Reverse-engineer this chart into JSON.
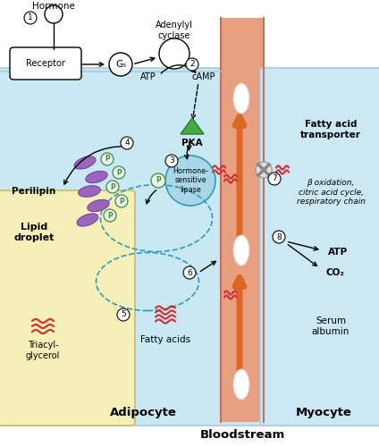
{
  "bg_color": "#ffffff",
  "cell_top_color": "#ddf0f8",
  "adipocyte_color": "#c8e8f4",
  "myocyte_color": "#c8e8f4",
  "bloodstream_color": "#e8a080",
  "lipid_region_color": "#f5f0b8",
  "hormone_sensitive_color": "#a8d8e8",
  "labels": {
    "hormone": "Hormone",
    "adenylyl": "Adenylyl\ncyclase",
    "receptor": "Receptor",
    "gs": "G₅",
    "atp": "ATP",
    "camp": "cAMP",
    "pka": "PKA",
    "hormone_sensitive": "Hormone-\nsensitive\nlipase",
    "perilipin": "Perilipin",
    "lipid_droplet": "Lipid\ndroplet",
    "triacylglycerol": "Triacyl-\nglycerol",
    "fatty_acids": "Fatty acids",
    "fatty_acid_transporter": "Fatty acid\ntransporter",
    "beta_oxidation": "β oxidation,\ncitric acid cycle,\nrespiratory chain",
    "atp2": "ATP",
    "co2": "CO₂",
    "serum_albumin": "Serum\nalbumin",
    "adipocyte": "Adipocyte",
    "myocyte": "Myocyte",
    "bloodstream": "Bloodstream"
  },
  "purple_color": "#9966bb",
  "green_tri_color": "#44aa44",
  "green_tri_edge": "#2a7a2a",
  "red_wavy_color": "#cc3333",
  "orange_arrow_color": "#dd6622",
  "bloodstream_border": "#c07060",
  "p_circle_bg": "#e8f5e8",
  "p_circle_edge": "#448844",
  "step_circle_bg": "white",
  "step_circle_edge": "black"
}
